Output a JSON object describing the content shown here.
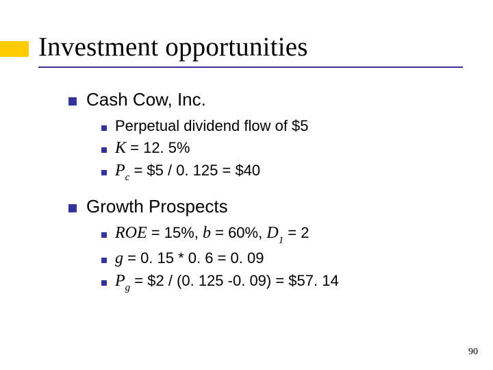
{
  "colors": {
    "accent": "#ffcc00",
    "bullet": "#333399",
    "underline": "#333399",
    "text": "#000000",
    "background": "#ffffff"
  },
  "title": "Investment opportunities",
  "sections": [
    {
      "heading": "Cash Cow, Inc.",
      "items": [
        {
          "segments": [
            {
              "t": "Perpetual dividend flow of $5"
            }
          ]
        },
        {
          "segments": [
            {
              "t": "K",
              "style": "it"
            },
            {
              "t": " = 12. 5%"
            }
          ]
        },
        {
          "segments": [
            {
              "t": "P",
              "style": "it"
            },
            {
              "t": "c",
              "style": "sub"
            },
            {
              "t": " = $5 / 0. 125 = $40"
            }
          ]
        }
      ]
    },
    {
      "heading": "Growth Prospects",
      "items": [
        {
          "segments": [
            {
              "t": "ROE",
              "style": "it"
            },
            {
              "t": " = 15%, "
            },
            {
              "t": "b",
              "style": "it"
            },
            {
              "t": " = 60%, "
            },
            {
              "t": "D",
              "style": "it"
            },
            {
              "t": "1",
              "style": "sub"
            },
            {
              "t": " = 2"
            }
          ]
        },
        {
          "segments": [
            {
              "t": "g",
              "style": "it"
            },
            {
              "t": " = 0. 15 * 0. 6 = 0. 09"
            }
          ]
        },
        {
          "segments": [
            {
              "t": "P",
              "style": "it"
            },
            {
              "t": "g",
              "style": "sub"
            },
            {
              "t": " = $2 / (0. 125 -0. 09) = $57. 14"
            }
          ]
        }
      ]
    }
  ],
  "page_number": "90",
  "typography": {
    "title_fontsize": 39,
    "l1_fontsize": 26,
    "l2_fontsize": 22,
    "italic_family": "Times New Roman"
  }
}
